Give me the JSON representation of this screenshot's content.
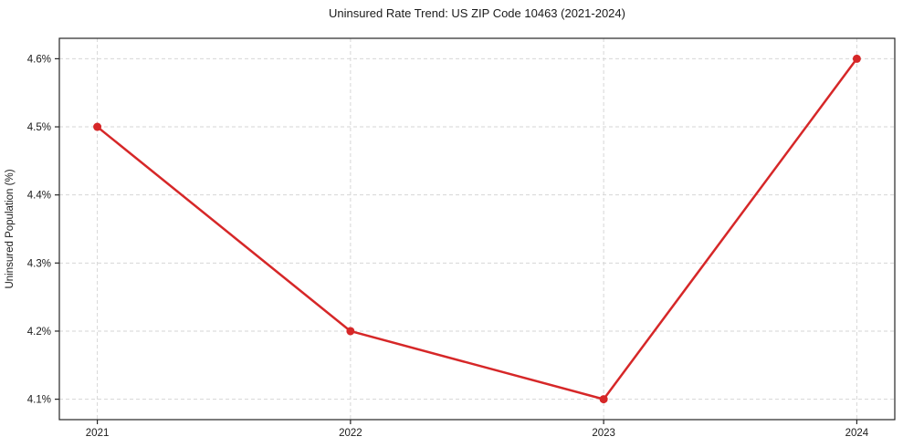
{
  "chart_data": {
    "type": "line",
    "title": "Uninsured Rate Trend: US ZIP Code 10463 (2021-2024)",
    "xlabel": "",
    "ylabel": "Uninsured Population (%)",
    "x": [
      2021,
      2022,
      2023,
      2024
    ],
    "values": [
      4.5,
      4.2,
      4.1,
      4.6
    ],
    "x_tick_labels": [
      "2021",
      "2022",
      "2023",
      "2024"
    ],
    "y_ticks": [
      4.1,
      4.2,
      4.3,
      4.4,
      4.5,
      4.6
    ],
    "y_tick_labels": [
      "4.1%",
      "4.2%",
      "4.3%",
      "4.4%",
      "4.5%",
      "4.6%"
    ],
    "xlim": [
      2020.85,
      2024.15
    ],
    "ylim": [
      4.07,
      4.63
    ],
    "grid": true,
    "grid_style": "dashed",
    "legend": false,
    "line_color": "#d62728",
    "marker": "circle",
    "marker_radius": 4.5,
    "line_width": 2.5,
    "colors": {
      "grid": "#d6d6d6",
      "axis": "#262626",
      "text": "#1a1a1a",
      "background": "#ffffff"
    }
  }
}
